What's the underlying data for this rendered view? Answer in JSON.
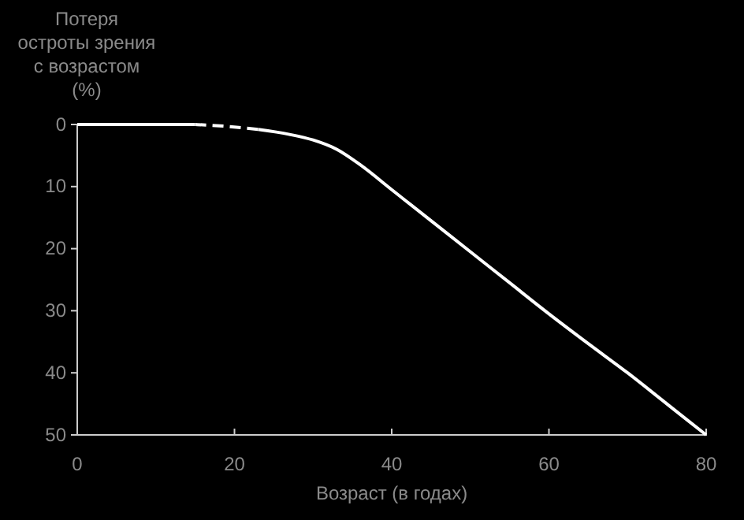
{
  "chart_data": {
    "type": "line",
    "ylabel": "Потеря\nостроты зрения\nс возрастом\n(%)",
    "xlabel": "Возраст (в годах)",
    "xlim": [
      0,
      80
    ],
    "xticks": [
      0,
      20,
      40,
      60,
      80
    ],
    "ylim": [
      50,
      0
    ],
    "yticks": [
      0,
      10,
      20,
      30,
      40,
      50
    ],
    "grid": false,
    "marker": "none",
    "series": [
      {
        "color": "#ffffff",
        "line_style": "solid",
        "x": [
          0,
          15
        ],
        "values": [
          0,
          0
        ]
      },
      {
        "color": "#ffffff",
        "line_style": "dashed",
        "x": [
          15,
          19,
          23
        ],
        "values": [
          0,
          0.3,
          0.8
        ]
      },
      {
        "color": "#ffffff",
        "line_style": "solid",
        "x": [
          23,
          27,
          30,
          33,
          36,
          40,
          45,
          50,
          55,
          60,
          65,
          70,
          75,
          80
        ],
        "values": [
          0.8,
          1.6,
          2.5,
          4,
          6.5,
          10.5,
          15.5,
          20.5,
          25.5,
          30.5,
          35.3,
          40,
          45,
          50
        ]
      }
    ]
  }
}
